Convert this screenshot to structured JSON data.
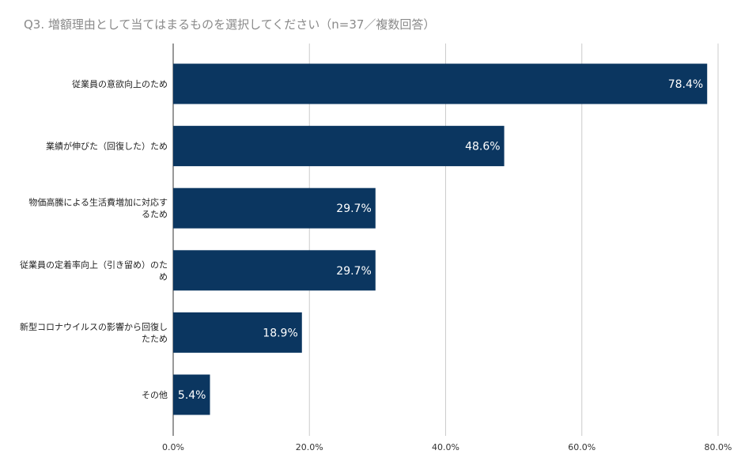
{
  "chart_data": {
    "type": "bar",
    "orientation": "horizontal",
    "title": "Q3. 増額理由として当てはまるものを選択してください（n=37／複数回答）",
    "categories": [
      [
        "従業員の意欲向上のため"
      ],
      [
        "業績が伸びた（回復した）ため"
      ],
      [
        "物価高騰による生活費増加に対応す",
        "るため"
      ],
      [
        "従業員の定着率向上（引き留め）のた",
        "め"
      ],
      [
        "新型コロナウイルスの影響から回復し",
        "たため"
      ],
      [
        "その他"
      ]
    ],
    "values": [
      78.4,
      48.6,
      29.7,
      29.7,
      18.9,
      5.4
    ],
    "value_labels": [
      "78.4%",
      "48.6%",
      "29.7%",
      "29.7%",
      "18.9%",
      "5.4%"
    ],
    "xlim": [
      0,
      80
    ],
    "xticks": [
      0,
      20,
      40,
      60,
      80
    ],
    "xtick_labels": [
      "0.0%",
      "20.0%",
      "40.0%",
      "60.0%",
      "80.0%"
    ],
    "grid": true,
    "bar_color": "#0b3660",
    "grid_color": "#cccccc"
  }
}
